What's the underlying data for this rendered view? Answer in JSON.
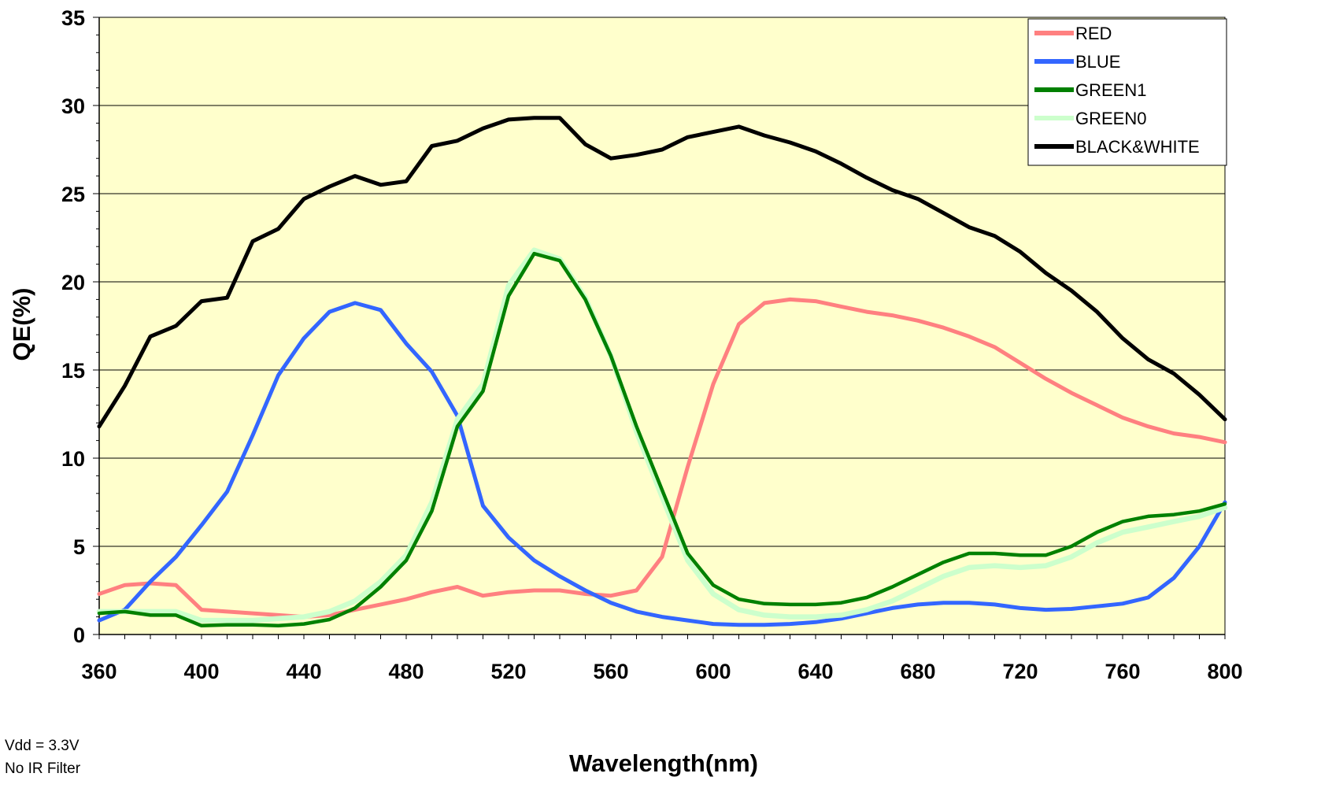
{
  "notes": [
    "Vdd = 3.3V",
    "No IR Filter"
  ],
  "colors": {
    "plot_background": "#ffffcc",
    "RED": "#ff8080",
    "BLUE": "#3366ff",
    "GREEN1": "#008000",
    "GREEN0": "#ccffcc",
    "BLACK&WHITE": "#000000"
  },
  "chart_data": {
    "type": "line",
    "title": "",
    "xlabel": "Wavelength(nm)",
    "ylabel": "QE(%)",
    "xlim": [
      360,
      800
    ],
    "ylim": [
      0,
      35
    ],
    "xticks": [
      360,
      400,
      440,
      480,
      520,
      560,
      600,
      640,
      680,
      720,
      760,
      800
    ],
    "yticks": [
      0,
      5,
      10,
      15,
      20,
      25,
      30,
      35
    ],
    "grid": "horizontal",
    "legend_position": "top-right",
    "x": [
      360,
      370,
      380,
      390,
      400,
      410,
      420,
      430,
      440,
      450,
      460,
      470,
      480,
      490,
      500,
      510,
      520,
      530,
      540,
      550,
      560,
      570,
      580,
      590,
      600,
      610,
      620,
      630,
      640,
      650,
      660,
      670,
      680,
      690,
      700,
      710,
      720,
      730,
      740,
      750,
      760,
      770,
      780,
      790,
      800
    ],
    "series": [
      {
        "name": "RED",
        "values": [
          2.3,
          2.8,
          2.9,
          2.8,
          1.4,
          1.3,
          1.2,
          1.1,
          1.0,
          1.1,
          1.4,
          1.7,
          2.0,
          2.4,
          2.7,
          2.2,
          2.4,
          2.5,
          2.5,
          2.3,
          2.2,
          2.5,
          4.4,
          9.5,
          14.2,
          17.6,
          18.8,
          19.0,
          18.9,
          18.6,
          18.3,
          18.1,
          17.8,
          17.4,
          16.9,
          16.3,
          15.4,
          14.5,
          13.7,
          13.0,
          12.3,
          11.8,
          11.4,
          11.2,
          10.9
        ]
      },
      {
        "name": "BLUE",
        "values": [
          0.8,
          1.4,
          3.0,
          4.4,
          6.2,
          8.1,
          11.3,
          14.7,
          16.8,
          18.3,
          18.8,
          18.4,
          16.5,
          14.9,
          12.4,
          7.3,
          5.5,
          4.2,
          3.3,
          2.5,
          1.8,
          1.3,
          1.0,
          0.8,
          0.6,
          0.55,
          0.55,
          0.6,
          0.7,
          0.9,
          1.2,
          1.5,
          1.7,
          1.8,
          1.8,
          1.7,
          1.5,
          1.4,
          1.45,
          1.6,
          1.75,
          2.1,
          3.2,
          5.0,
          7.5
        ]
      },
      {
        "name": "GREEN1",
        "values": [
          1.2,
          1.3,
          1.1,
          1.1,
          0.5,
          0.55,
          0.55,
          0.5,
          0.6,
          0.85,
          1.5,
          2.7,
          4.2,
          7.0,
          11.8,
          13.8,
          19.2,
          21.6,
          21.2,
          19.0,
          15.8,
          11.8,
          8.2,
          4.6,
          2.8,
          2.0,
          1.75,
          1.7,
          1.7,
          1.8,
          2.1,
          2.7,
          3.4,
          4.1,
          4.6,
          4.6,
          4.5,
          4.5,
          5.0,
          5.8,
          6.4,
          6.7,
          6.8,
          7.0,
          7.4
        ]
      },
      {
        "name": "GREEN0",
        "values": [
          1.3,
          1.3,
          1.3,
          1.3,
          0.8,
          0.8,
          0.8,
          0.9,
          1.0,
          1.3,
          1.9,
          3.0,
          4.5,
          7.5,
          12.2,
          14.2,
          19.8,
          21.8,
          21.3,
          19.1,
          15.8,
          11.5,
          7.8,
          4.2,
          2.3,
          1.4,
          1.1,
          1.0,
          1.0,
          1.1,
          1.4,
          1.9,
          2.6,
          3.3,
          3.8,
          3.9,
          3.8,
          3.9,
          4.4,
          5.2,
          5.8,
          6.1,
          6.4,
          6.7,
          7.2
        ]
      },
      {
        "name": "BLACK&WHITE",
        "values": [
          11.8,
          14.1,
          16.9,
          17.5,
          18.9,
          19.1,
          22.3,
          23.0,
          24.7,
          25.4,
          26.0,
          25.5,
          25.7,
          27.7,
          28.0,
          28.7,
          29.2,
          29.3,
          29.3,
          27.8,
          27.0,
          27.2,
          27.5,
          28.2,
          28.5,
          28.8,
          28.3,
          27.9,
          27.4,
          26.7,
          25.9,
          25.2,
          24.7,
          23.9,
          23.1,
          22.6,
          21.7,
          20.5,
          19.5,
          18.3,
          16.8,
          15.6,
          14.8,
          13.6,
          12.2
        ]
      }
    ]
  }
}
